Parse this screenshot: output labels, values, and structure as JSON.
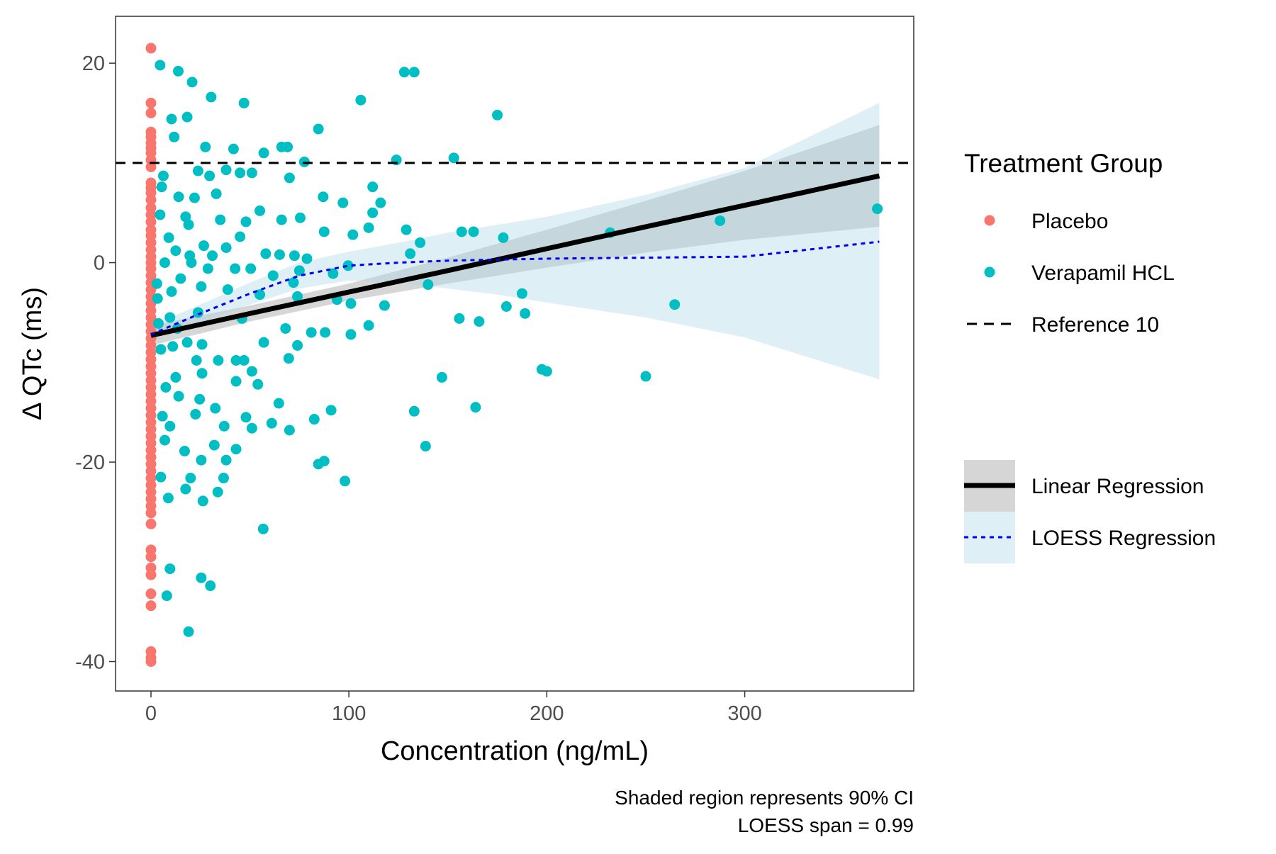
{
  "chart_data": {
    "type": "scatter",
    "x_label": "Concentration (ng/mL)",
    "y_label": "Δ QTc (ms)",
    "caption": [
      "Shaded region represents 90% CI",
      "LOESS span = 0.99"
    ],
    "legend_title": "Treatment Group",
    "xlim": [
      -17.9,
      385.4
    ],
    "ylim": [
      -42.95,
      24.7
    ],
    "xticks": [
      0,
      100,
      200,
      300
    ],
    "yticks": [
      -40,
      -20,
      0,
      20
    ],
    "minor_xticks": [
      50,
      150,
      250,
      350
    ],
    "minor_yticks": [
      -30,
      -10,
      10
    ],
    "grid": true,
    "series": [
      {
        "name": "Placebo",
        "color": "#F8766D",
        "x": [
          0,
          0,
          0,
          0,
          0,
          0,
          0,
          0,
          0,
          0,
          0,
          0,
          0,
          0,
          0,
          0,
          0,
          0,
          0,
          0,
          0,
          0,
          0,
          0,
          0,
          0,
          0,
          0,
          0,
          0,
          0,
          0,
          0,
          0,
          0,
          0,
          0,
          0,
          0,
          0,
          0,
          0,
          0,
          0,
          0,
          0,
          0,
          0,
          0,
          0,
          0,
          0,
          0,
          0,
          0,
          0,
          0,
          0,
          0,
          0,
          0,
          0,
          0,
          0,
          0,
          0,
          0,
          0,
          0
        ],
        "y": [
          21.5,
          16,
          15,
          13.1,
          12.6,
          12,
          11.5,
          11,
          10.3,
          9.6,
          8,
          7.5,
          7,
          6.3,
          5.5,
          4.8,
          4.1,
          3.3,
          2.7,
          2,
          1.3,
          0.6,
          0,
          -0.6,
          -1.3,
          -2,
          -2.7,
          -3.4,
          -4.1,
          -4.8,
          -5.5,
          -6.2,
          -6.9,
          -7.6,
          -8.3,
          -9,
          -9.7,
          -10.4,
          -11.1,
          -11.8,
          -12.5,
          -13.2,
          -13.9,
          -14.6,
          -15.3,
          -16,
          -16.7,
          -17.4,
          -18.1,
          -18.8,
          -19.5,
          -20.2,
          -20.9,
          -21.6,
          -22.3,
          -23,
          -23.7,
          -24.4,
          -25.1,
          -26.2,
          -28.8,
          -29.5,
          -30.6,
          -31.3,
          -33.2,
          -34.4,
          -39,
          -39.6,
          -40
        ]
      },
      {
        "name": "Verapamil HCL",
        "color": "#00BFC4",
        "x": [
          4.6,
          13.8,
          20.8,
          30.4,
          47,
          106,
          128,
          133,
          175,
          84.6,
          10.4,
          18.3,
          11.7,
          27.5,
          41.7,
          57,
          66,
          69,
          124,
          153,
          23.8,
          38,
          45,
          51,
          77.5,
          70,
          29.6,
          5.4,
          112,
          33,
          22,
          87,
          116,
          97,
          55,
          112,
          367,
          287.5,
          48,
          35,
          66,
          75.4,
          19,
          110,
          129,
          157,
          163,
          87.5,
          102,
          232,
          136,
          178,
          45,
          9,
          12.5,
          26.7,
          38,
          58,
          131,
          65,
          72.5,
          19.6,
          31,
          78.8,
          42.5,
          50.4,
          99.6,
          28.8,
          15,
          3,
          140,
          187.5,
          10.4,
          25.4,
          38.8,
          55,
          74,
          94,
          101,
          118,
          179.6,
          264.6,
          189,
          23.8,
          46,
          155.8,
          165.8,
          110,
          9.6,
          68,
          81,
          88,
          101,
          57,
          25.8,
          74,
          5,
          11,
          47,
          69.6,
          23,
          34,
          43,
          197.5,
          200,
          250,
          147,
          51,
          12.5,
          25.8,
          43,
          7.5,
          54,
          14,
          24.6,
          32.5,
          64.6,
          91,
          133,
          164,
          5.8,
          22.5,
          48,
          37,
          51,
          61,
          70,
          82.5,
          9.6,
          138.75,
          32,
          43,
          7,
          17,
          38,
          25.4,
          84.6,
          87.5,
          98,
          20,
          36.7,
          5,
          17.5,
          33.75,
          8.75,
          26.25,
          56.7,
          9.6,
          25.4,
          30,
          8,
          19,
          6.25,
          14,
          17.5,
          4.6,
          20.4,
          7,
          61.7,
          72,
          75,
          92,
          3.3,
          13.3,
          18.3,
          3.75
        ],
        "y": [
          19.8,
          19.2,
          18.1,
          16.6,
          16,
          16.3,
          19.1,
          19.1,
          14.8,
          13.4,
          14.4,
          14.6,
          12.6,
          11.6,
          11.4,
          11,
          11.6,
          11.6,
          10.3,
          10.5,
          9.2,
          9.3,
          9,
          9,
          10.1,
          8.5,
          8.7,
          7.6,
          7.6,
          6.9,
          6.5,
          6.6,
          6,
          6,
          5.2,
          5,
          5.4,
          4.2,
          4.1,
          4.3,
          4.3,
          4.5,
          3.8,
          3.5,
          3.3,
          3.1,
          3.1,
          3.1,
          2.8,
          3,
          2,
          2.5,
          2.6,
          2.5,
          1.2,
          1.7,
          1.5,
          0.9,
          0.9,
          0.8,
          0.7,
          0.7,
          0.7,
          0.4,
          -0.6,
          -0.6,
          -0.3,
          -0.6,
          -1.6,
          -2.1,
          -2.2,
          -3.1,
          -2.9,
          -2.4,
          -2.7,
          -3.2,
          -3.4,
          -3.7,
          -4.1,
          -4.3,
          -4.4,
          -4.2,
          -5.1,
          -5,
          -5.6,
          -5.6,
          -5.9,
          -6.3,
          -5.5,
          -6.6,
          -7,
          -7,
          -7.2,
          -8,
          -8.2,
          -8.3,
          -8.7,
          -8.4,
          -9.8,
          -9.6,
          -9.8,
          -9.8,
          -9.8,
          -10.7,
          -10.9,
          -11.4,
          -11.5,
          -10.9,
          -11.5,
          -11.1,
          -11.9,
          -12.5,
          -12.2,
          -13.4,
          -13.7,
          -14.6,
          -14.1,
          -14.8,
          -14.9,
          -14.5,
          -15.4,
          -15.2,
          -15.5,
          -16.4,
          -16.6,
          -16.1,
          -16.8,
          -15.7,
          -16.4,
          -18.4,
          -18.3,
          -18.7,
          -17.8,
          -18.9,
          -19.8,
          -19.8,
          -20.2,
          -19.9,
          -21.9,
          -21.6,
          -21.6,
          -21.5,
          -22.7,
          -23,
          -23.6,
          -23.9,
          -26.7,
          -30.7,
          -31.6,
          -32.4,
          -33.4,
          -37,
          8.7,
          6.6,
          4.6,
          4.8,
          0,
          0,
          -1.3,
          -2,
          -0.8,
          -1.1,
          -3.6,
          -6.6,
          -8,
          -6.1
        ]
      }
    ],
    "reference": {
      "name": "Reference 10",
      "value": 10,
      "color": "#000000"
    },
    "fits": [
      {
        "name": "Linear Regression",
        "color": "#000000",
        "band_color": "#999999",
        "dash": "none",
        "x": [
          0,
          50,
          100,
          150,
          200,
          250,
          300,
          368
        ],
        "y": [
          -7.3,
          -5.1,
          -2.95,
          -0.8,
          1.4,
          3.6,
          5.75,
          8.7
        ],
        "lower": [
          -8.3,
          -5.9,
          -3.8,
          -2.1,
          -0.5,
          1.0,
          2.3,
          3.6
        ],
        "upper": [
          -6.3,
          -4.3,
          -2.1,
          0.5,
          3.3,
          6.2,
          9.2,
          13.8
        ]
      },
      {
        "name": "LOESS Regression",
        "color": "#0000EE",
        "band_color": "#ADD8E6",
        "dash": "6 6",
        "x": [
          0,
          25,
          50,
          75,
          100,
          125,
          150,
          175,
          200,
          250,
          300,
          368
        ],
        "y": [
          -7.2,
          -5.1,
          -3.1,
          -1.3,
          -0.3,
          0.0,
          0.2,
          0.3,
          0.4,
          0.5,
          0.6,
          2.1
        ],
        "lower": [
          -8,
          -6,
          -4.2,
          -2.6,
          -1.8,
          -2,
          -2.6,
          -3.2,
          -4,
          -5.5,
          -7.5,
          -11.7
        ],
        "upper": [
          -6.3,
          -4.2,
          -2,
          0,
          1.1,
          2,
          3,
          3.8,
          4.6,
          6.8,
          9.5,
          16
        ]
      }
    ]
  }
}
